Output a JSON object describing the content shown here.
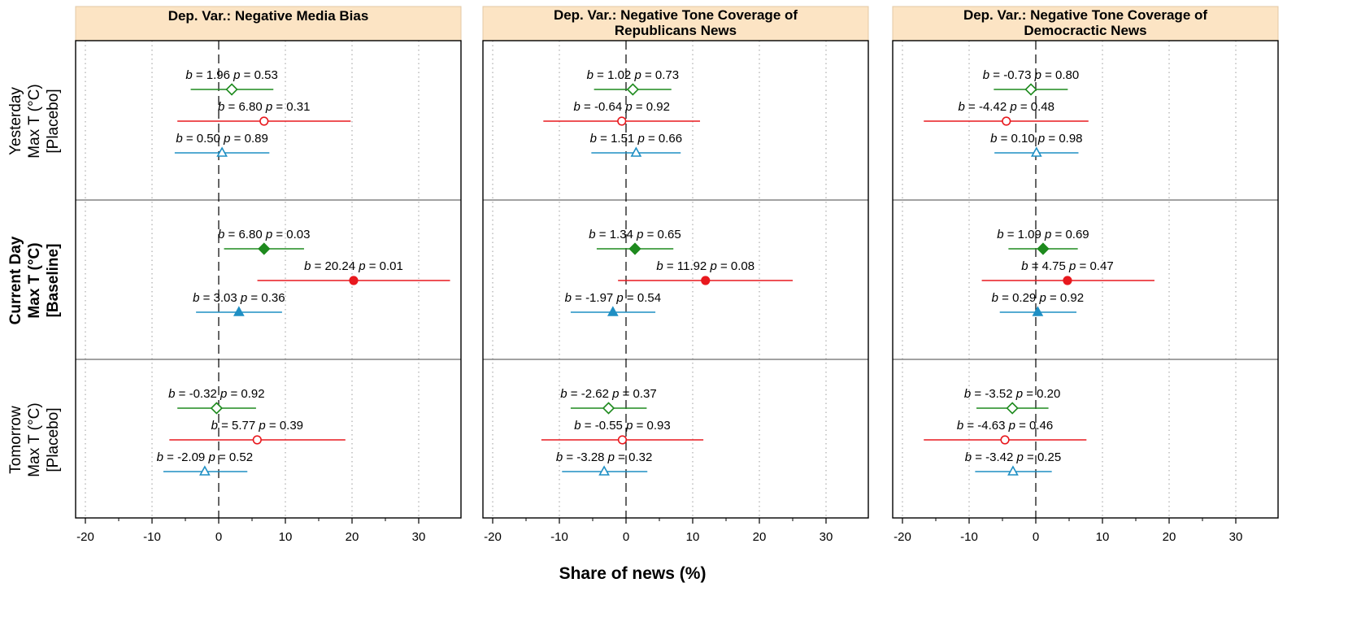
{
  "chart_data": {
    "type": "forest",
    "xlabel": "Share of news (%)",
    "xlim": [
      -21.5,
      36
    ],
    "xticks": [
      -20,
      -10,
      0,
      10,
      20,
      30
    ],
    "minor_ticks": [
      -15,
      -5,
      5,
      15,
      25
    ],
    "grid": "dotted vertical",
    "reference_line": 0,
    "rows": [
      {
        "lines": [
          "Yesterday",
          "Max T (°C)",
          "[Placebo]"
        ],
        "bold": false,
        "filled": false
      },
      {
        "lines": [
          "Current Day",
          "Max T (°C)",
          "[Baseline]"
        ],
        "bold": true,
        "filled": true
      },
      {
        "lines": [
          "Tomorrow",
          "Max T (°C)",
          "[Placebo]"
        ],
        "bold": false,
        "filled": false
      }
    ],
    "colors": {
      "green": "#1e8a1e",
      "red": "#e8191e",
      "blue": "#1f8fc4",
      "header_bg": "#fce4c4",
      "header_border": "#e3c9a5"
    },
    "panels": [
      {
        "title_lines": [
          "Dep. Var.: Negative Media Bias"
        ],
        "rows": [
          [
            {
              "color": "green",
              "marker": "diamond",
              "b": 1.96,
              "p": 0.53,
              "b_text": "1.96",
              "p_text": "0.53",
              "lo": -4.2,
              "hi": 8.2
            },
            {
              "color": "red",
              "marker": "circle",
              "b": 6.8,
              "p": 0.31,
              "b_text": "6.80",
              "p_text": "0.31",
              "lo": -6.2,
              "hi": 19.8
            },
            {
              "color": "blue",
              "marker": "triangle",
              "b": 0.5,
              "p": 0.89,
              "b_text": "0.50",
              "p_text": "0.89",
              "lo": -6.6,
              "hi": 7.6
            }
          ],
          [
            {
              "color": "green",
              "marker": "diamond",
              "b": 6.8,
              "p": 0.03,
              "b_text": "6.80",
              "p_text": "0.03",
              "lo": 0.8,
              "hi": 12.8
            },
            {
              "color": "red",
              "marker": "circle",
              "b": 20.24,
              "p": 0.01,
              "b_text": "20.24",
              "p_text": "0.01",
              "lo": 5.8,
              "hi": 34.7
            },
            {
              "color": "blue",
              "marker": "triangle",
              "b": 3.03,
              "p": 0.36,
              "b_text": "3.03",
              "p_text": "0.36",
              "lo": -3.4,
              "hi": 9.5
            }
          ],
          [
            {
              "color": "green",
              "marker": "diamond",
              "b": -0.32,
              "p": 0.92,
              "b_text": "-0.32",
              "p_text": "0.92",
              "lo": -6.2,
              "hi": 5.6
            },
            {
              "color": "red",
              "marker": "circle",
              "b": 5.77,
              "p": 0.39,
              "b_text": "5.77",
              "p_text": "0.39",
              "lo": -7.4,
              "hi": 19.0
            },
            {
              "color": "blue",
              "marker": "triangle",
              "b": -2.09,
              "p": 0.52,
              "b_text": "-2.09",
              "p_text": "0.52",
              "lo": -8.3,
              "hi": 4.3
            }
          ]
        ]
      },
      {
        "title_lines": [
          "Dep. Var.: Negative Tone Coverage of",
          "Republicans News"
        ],
        "rows": [
          [
            {
              "color": "green",
              "marker": "diamond",
              "b": 1.02,
              "p": 0.73,
              "b_text": "1.02",
              "p_text": "0.73",
              "lo": -4.8,
              "hi": 6.8
            },
            {
              "color": "red",
              "marker": "circle",
              "b": -0.64,
              "p": 0.92,
              "b_text": "-0.64",
              "p_text": "0.92",
              "lo": -12.4,
              "hi": 11.1
            },
            {
              "color": "blue",
              "marker": "triangle",
              "b": 1.51,
              "p": 0.66,
              "b_text": "1.51",
              "p_text": "0.66",
              "lo": -5.2,
              "hi": 8.2
            }
          ],
          [
            {
              "color": "green",
              "marker": "diamond",
              "b": 1.34,
              "p": 0.65,
              "b_text": "1.34",
              "p_text": "0.65",
              "lo": -4.4,
              "hi": 7.1
            },
            {
              "color": "red",
              "marker": "circle",
              "b": 11.92,
              "p": 0.08,
              "b_text": "11.92",
              "p_text": "0.08",
              "lo": -1.2,
              "hi": 25.0
            },
            {
              "color": "blue",
              "marker": "triangle",
              "b": -1.97,
              "p": 0.54,
              "b_text": "-1.97",
              "p_text": "0.54",
              "lo": -8.3,
              "hi": 4.4
            }
          ],
          [
            {
              "color": "green",
              "marker": "diamond",
              "b": -2.62,
              "p": 0.37,
              "b_text": "-2.62",
              "p_text": "0.37",
              "lo": -8.3,
              "hi": 3.1
            },
            {
              "color": "red",
              "marker": "circle",
              "b": -0.55,
              "p": 0.93,
              "b_text": "-0.55",
              "p_text": "0.93",
              "lo": -12.7,
              "hi": 11.6
            },
            {
              "color": "blue",
              "marker": "triangle",
              "b": -3.28,
              "p": 0.32,
              "b_text": "-3.28",
              "p_text": "0.32",
              "lo": -9.6,
              "hi": 3.2
            }
          ]
        ]
      },
      {
        "title_lines": [
          "Dep. Var.: Negative Tone Coverage of",
          "Democractic News"
        ],
        "rows": [
          [
            {
              "color": "green",
              "marker": "diamond",
              "b": -0.73,
              "p": 0.8,
              "b_text": "-0.73",
              "p_text": "0.80",
              "lo": -6.3,
              "hi": 4.8
            },
            {
              "color": "red",
              "marker": "circle",
              "b": -4.42,
              "p": 0.48,
              "b_text": "-4.42",
              "p_text": "0.48",
              "lo": -16.8,
              "hi": 7.9
            },
            {
              "color": "blue",
              "marker": "triangle",
              "b": 0.1,
              "p": 0.98,
              "b_text": "0.10",
              "p_text": "0.98",
              "lo": -6.2,
              "hi": 6.4
            }
          ],
          [
            {
              "color": "green",
              "marker": "diamond",
              "b": 1.09,
              "p": 0.69,
              "b_text": "1.09",
              "p_text": "0.69",
              "lo": -4.1,
              "hi": 6.3
            },
            {
              "color": "red",
              "marker": "circle",
              "b": 4.75,
              "p": 0.47,
              "b_text": "4.75",
              "p_text": "0.47",
              "lo": -8.1,
              "hi": 17.8
            },
            {
              "color": "blue",
              "marker": "triangle",
              "b": 0.29,
              "p": 0.92,
              "b_text": "0.29",
              "p_text": "0.92",
              "lo": -5.4,
              "hi": 6.1
            }
          ],
          [
            {
              "color": "green",
              "marker": "diamond",
              "b": -3.52,
              "p": 0.2,
              "b_text": "-3.52",
              "p_text": "0.20",
              "lo": -8.9,
              "hi": 1.9
            },
            {
              "color": "red",
              "marker": "circle",
              "b": -4.63,
              "p": 0.46,
              "b_text": "-4.63",
              "p_text": "0.46",
              "lo": -16.8,
              "hi": 7.6
            },
            {
              "color": "blue",
              "marker": "triangle",
              "b": -3.42,
              "p": 0.25,
              "b_text": "-3.42",
              "p_text": "0.25",
              "lo": -9.1,
              "hi": 2.4
            }
          ]
        ]
      }
    ]
  }
}
